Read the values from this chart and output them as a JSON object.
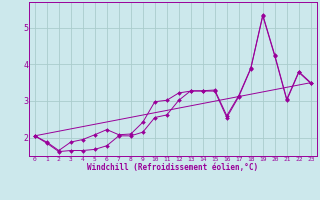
{
  "xlabel": "Windchill (Refroidissement éolien,°C)",
  "background_color": "#cce8ec",
  "line_color": "#990099",
  "grid_color": "#aacccc",
  "xlim": [
    -0.5,
    23.5
  ],
  "ylim": [
    1.5,
    5.7
  ],
  "xticks": [
    0,
    1,
    2,
    3,
    4,
    5,
    6,
    7,
    8,
    9,
    10,
    11,
    12,
    13,
    14,
    15,
    16,
    17,
    18,
    19,
    20,
    21,
    22,
    23
  ],
  "yticks": [
    2,
    3,
    4,
    5
  ],
  "series": [
    {
      "x": [
        0,
        1,
        2,
        3,
        4,
        5,
        6,
        7,
        8,
        9,
        10,
        11,
        12,
        13,
        14,
        15,
        16,
        17,
        18,
        19,
        20,
        21,
        22,
        23
      ],
      "y": [
        2.05,
        1.85,
        1.62,
        1.65,
        1.65,
        1.68,
        1.78,
        2.05,
        2.05,
        2.15,
        2.55,
        2.62,
        3.02,
        3.28,
        3.28,
        3.3,
        2.6,
        3.15,
        3.9,
        5.35,
        4.25,
        3.05,
        3.8,
        3.5
      ],
      "has_markers": true
    },
    {
      "x": [
        0,
        1,
        2,
        3,
        4,
        5,
        6,
        7,
        8,
        9,
        10,
        11,
        12,
        13,
        14,
        15,
        16,
        17,
        18,
        19,
        20,
        21,
        22,
        23
      ],
      "y": [
        2.05,
        1.88,
        1.65,
        1.88,
        1.95,
        2.08,
        2.22,
        2.08,
        2.1,
        2.42,
        2.98,
        3.02,
        3.22,
        3.27,
        3.27,
        3.27,
        2.55,
        3.12,
        3.88,
        5.32,
        4.22,
        3.02,
        3.78,
        3.48
      ],
      "has_markers": true
    },
    {
      "x": [
        0,
        23
      ],
      "y": [
        2.05,
        3.5
      ],
      "has_markers": false
    }
  ]
}
